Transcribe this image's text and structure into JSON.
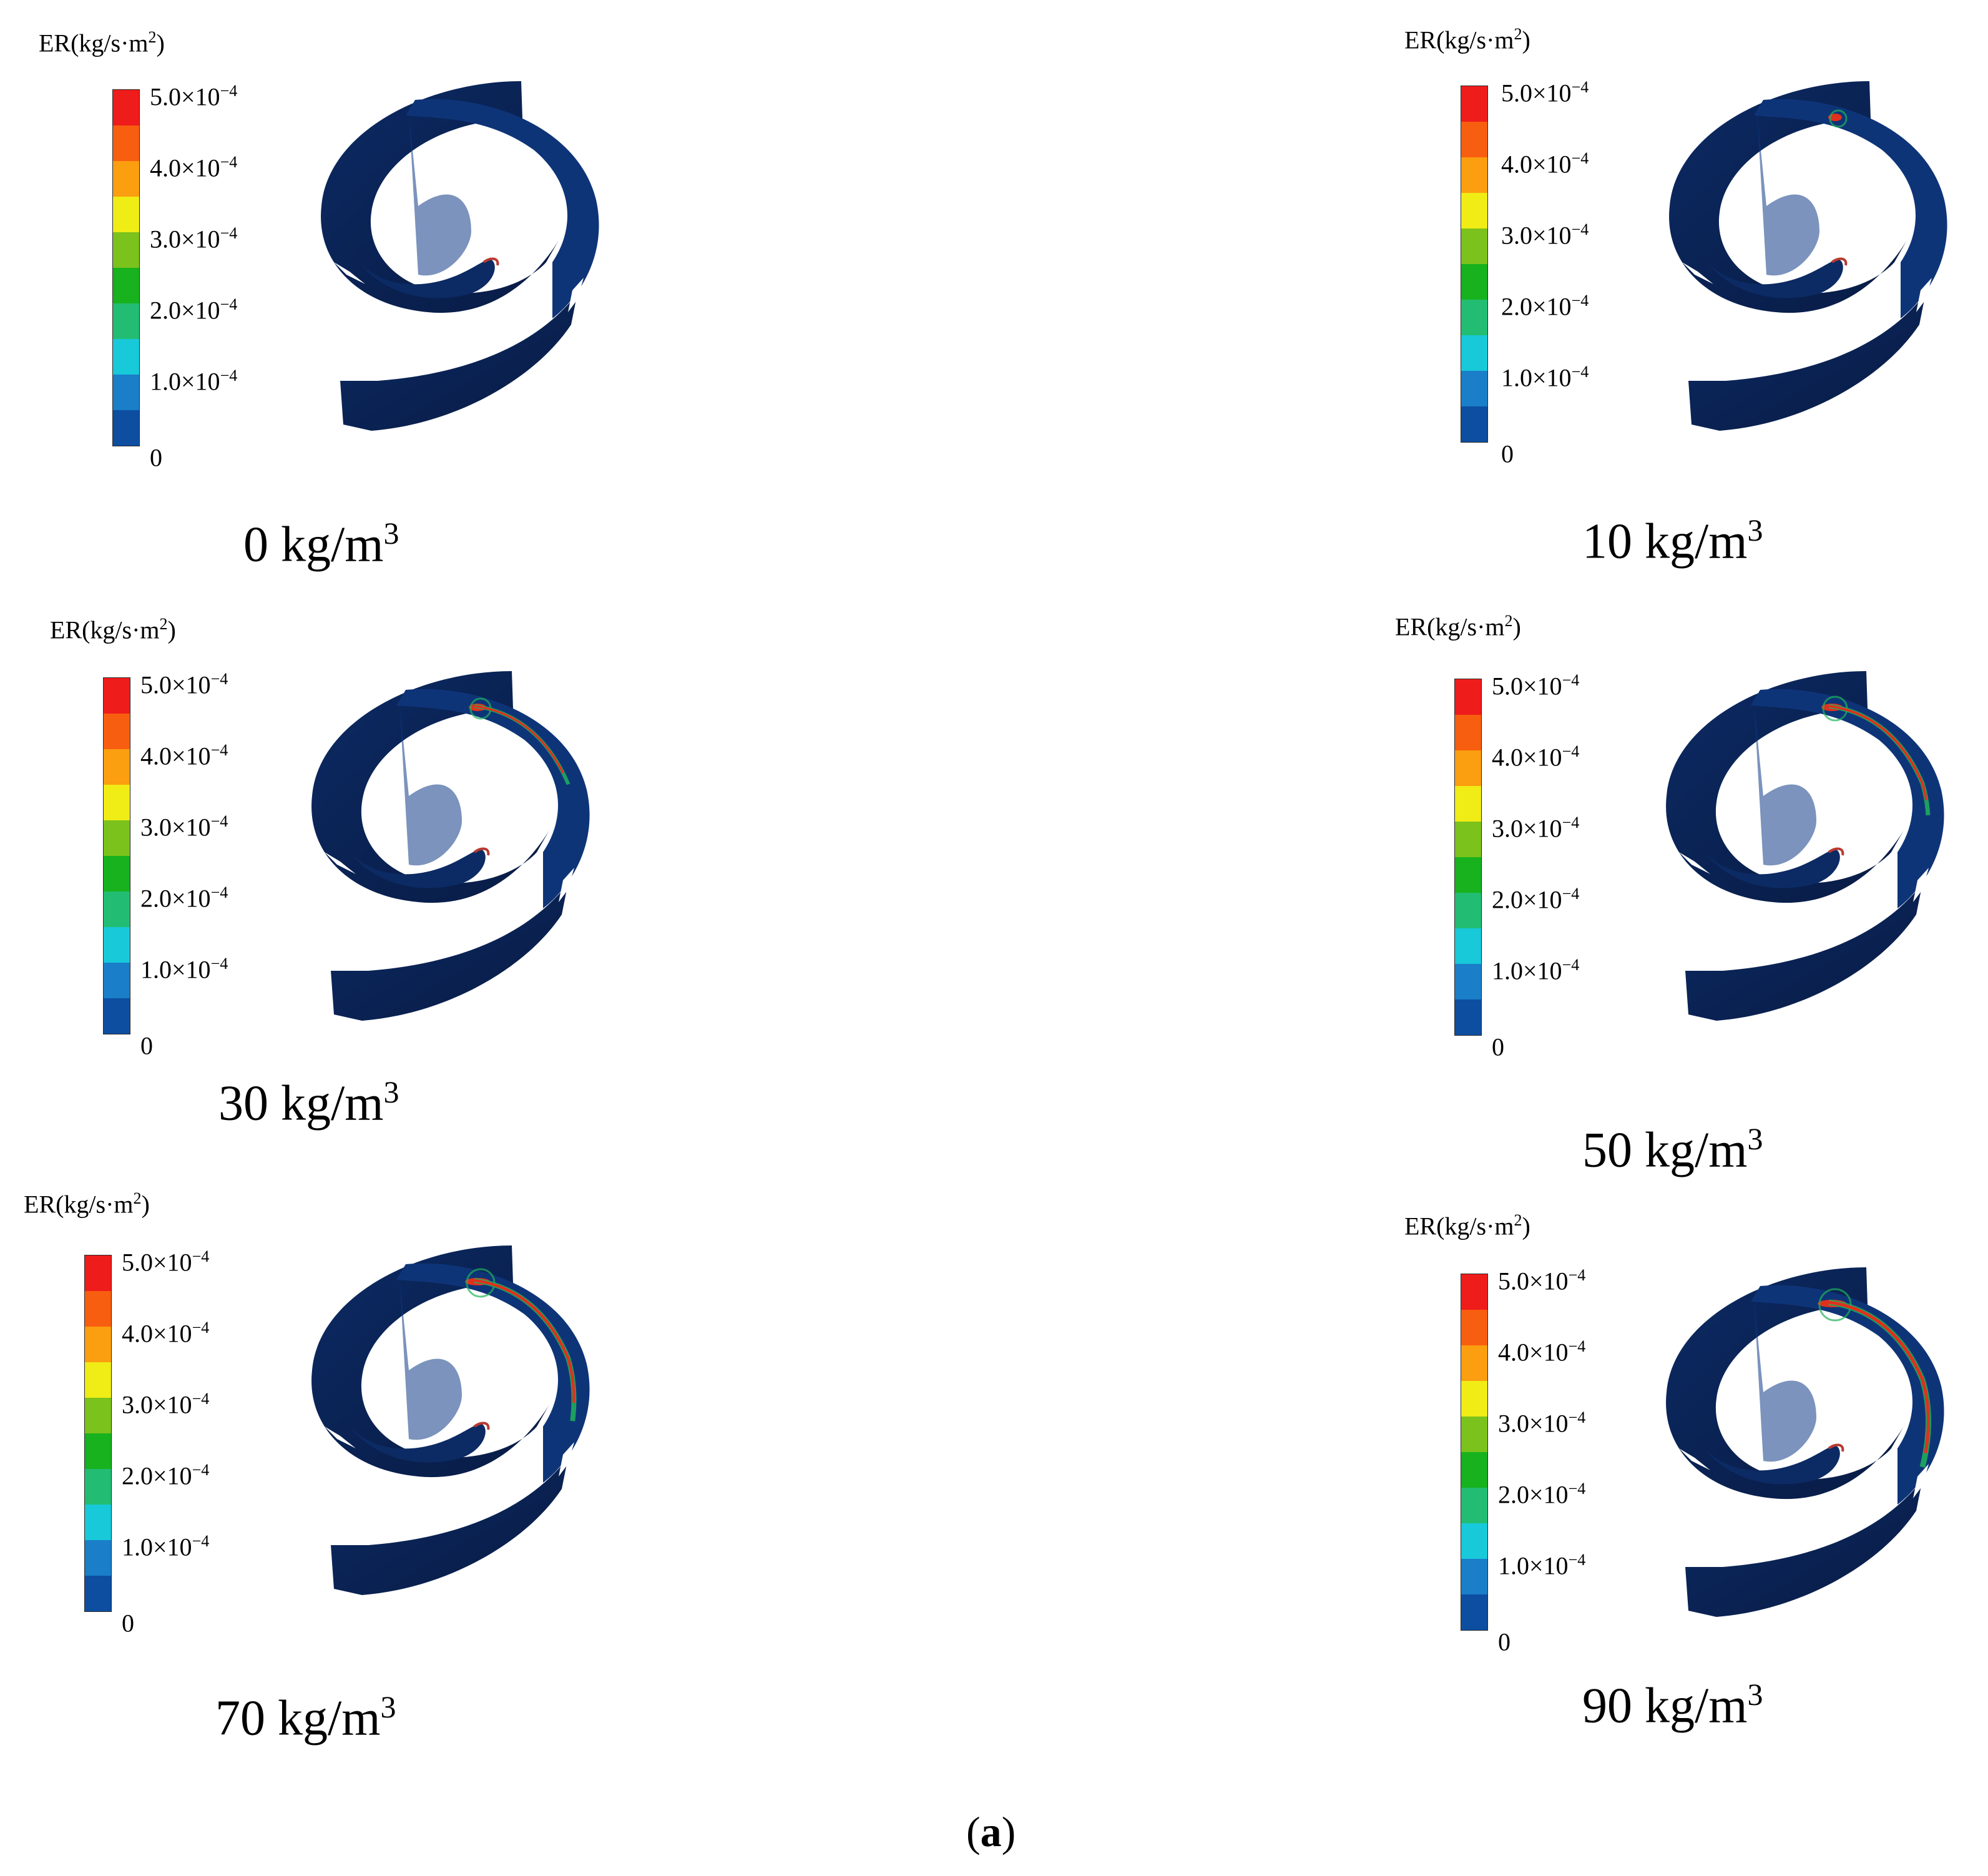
{
  "colorbar": {
    "colors": [
      "#ef1c1c",
      "#f85e10",
      "#fb9e0f",
      "#f0ec16",
      "#7cc21c",
      "#17b21e",
      "#22bd72",
      "#17c9d9",
      "#1a7ec8",
      "#0d4ea0"
    ],
    "ticks": [
      {
        "mantissa": "5.0×10",
        "exp": "−4"
      },
      {
        "mantissa": "4.0×10",
        "exp": "−4"
      },
      {
        "mantissa": "3.0×10",
        "exp": "−4"
      },
      {
        "mantissa": "2.0×10",
        "exp": "−4"
      },
      {
        "mantissa": "1.0×10",
        "exp": "−4"
      },
      {
        "mantissa": "0",
        "exp": ""
      }
    ]
  },
  "er_title": {
    "prefix": "ER(kg/s·m",
    "exp": "2",
    "suffix": ")"
  },
  "panels": [
    {
      "value": "0",
      "unit": "kg/m",
      "exp": "3",
      "wear": 0
    },
    {
      "value": "10",
      "unit": "kg/m",
      "exp": "3",
      "wear": 1
    },
    {
      "value": "30",
      "unit": "kg/m",
      "exp": "3",
      "wear": 2
    },
    {
      "value": "50",
      "unit": "kg/m",
      "exp": "3",
      "wear": 3
    },
    {
      "value": "70",
      "unit": "kg/m",
      "exp": "3",
      "wear": 4
    },
    {
      "value": "90",
      "unit": "kg/m",
      "exp": "3",
      "wear": 5
    }
  ],
  "figure_label": {
    "open": "(",
    "letter": "a",
    "close": ")"
  },
  "colors": {
    "impeller_base": "#0c2a63",
    "impeller_dark": "#081b44",
    "high_wear": "#e0301e",
    "mid_wear": "#1fb35a"
  }
}
